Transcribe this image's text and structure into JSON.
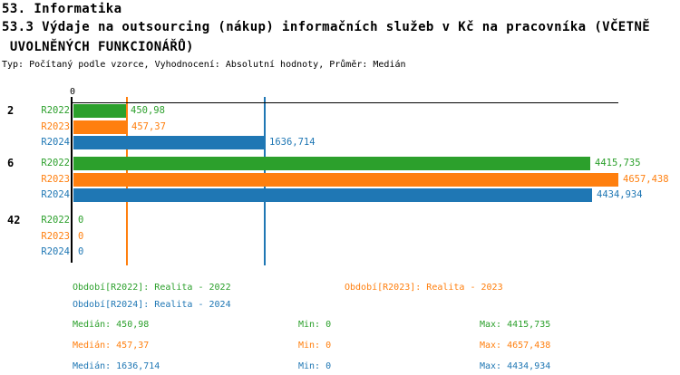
{
  "header": {
    "title_line1": "53. Informatika",
    "title_line2": "53.3 Výdaje na outsourcing (nákup) informačních služeb v Kč na pracovníka (VČETNĚ",
    "title_line3": " UVOLNĚNÝCH FUNKCIONÁŘŮ)",
    "meta": "Typ: Počítaný podle vzorce, Vyhodnocení: Absolutní hodnoty, Průměr: Medián"
  },
  "colors": {
    "r2022_green": "#2CA02C",
    "r2023_orange": "#FF7F0E",
    "r2024_blue": "#1F77B4",
    "axis_black": "#000000",
    "background": "#FFFFFF"
  },
  "chart_data": {
    "type": "bar",
    "orientation": "horizontal",
    "title": "53.3 Výdaje na outsourcing (nákup) informačních služeb v Kč na pracovníka (VČETNĚ UVOLNĚNÝCH FUNKCIONÁŘŮ)",
    "xlabel": "",
    "ylabel": "",
    "xlim": [
      0,
      4657.438
    ],
    "grid": false,
    "axis_zero_label": "0",
    "categories": [
      "2",
      "6",
      "42"
    ],
    "series": [
      {
        "name": "R2022",
        "color": "#2CA02C",
        "values": [
          450.98,
          4415.735,
          0
        ],
        "value_labels": [
          "450,98",
          "4415,735",
          "0"
        ],
        "median": 450.98,
        "min": 0,
        "max": 4415.735
      },
      {
        "name": "R2023",
        "color": "#FF7F0E",
        "values": [
          457.37,
          4657.438,
          0
        ],
        "value_labels": [
          "457,37",
          "4657,438",
          "0"
        ],
        "median": 457.37,
        "min": 0,
        "max": 4657.438
      },
      {
        "name": "R2024",
        "color": "#1F77B4",
        "values": [
          1636.714,
          4434.934,
          0
        ],
        "value_labels": [
          "1636,714",
          "4434,934",
          "0"
        ],
        "median": 1636.714,
        "min": 0,
        "max": 4434.934
      }
    ],
    "median_lines": [
      {
        "series": "R2023",
        "value": 457.37,
        "color": "#FF7F0E"
      },
      {
        "series": "R2024",
        "value": 1636.714,
        "color": "#1F77B4"
      }
    ],
    "legend_position": "bottom"
  },
  "legend": {
    "periods": [
      {
        "label": "Období[R2022]: Realita - 2022",
        "series": "R2022",
        "color": "#2CA02C"
      },
      {
        "label": "Období[R2023]: Realita - 2023",
        "series": "R2023",
        "color": "#FF7F0E"
      },
      {
        "label": "Období[R2024]: Realita - 2024",
        "series": "R2024",
        "color": "#1F77B4"
      }
    ],
    "stats": [
      {
        "series": "R2022",
        "color": "#2CA02C",
        "median_label": "Medián: 450,98",
        "min_label": "Min: 0",
        "max_label": "Max: 4415,735"
      },
      {
        "series": "R2023",
        "color": "#FF7F0E",
        "median_label": "Medián: 457,37",
        "min_label": "Min: 0",
        "max_label": "Max: 4657,438"
      },
      {
        "series": "R2024",
        "color": "#1F77B4",
        "median_label": "Medián: 1636,714",
        "min_label": "Min: 0",
        "max_label": "Max: 4434,934"
      }
    ]
  }
}
